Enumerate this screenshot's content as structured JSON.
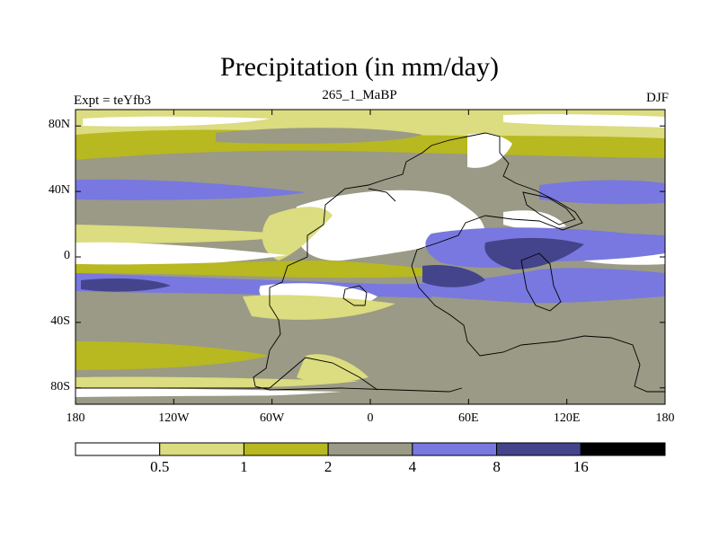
{
  "title": "Precipitation (in mm/day)",
  "left_label": "Expt = teYfb3",
  "center_label": "265_1_MaBP",
  "right_label": "DJF",
  "y_ticks": [
    {
      "label": "80N",
      "lat": 80
    },
    {
      "label": "40N",
      "lat": 40
    },
    {
      "label": "0",
      "lat": 0
    },
    {
      "label": "40S",
      "lat": -40
    },
    {
      "label": "80S",
      "lat": -80
    }
  ],
  "x_ticks": [
    {
      "label": "180",
      "lon": -180
    },
    {
      "label": "120W",
      "lon": -120
    },
    {
      "label": "60W",
      "lon": -60
    },
    {
      "label": "0",
      "lon": 0
    },
    {
      "label": "60E",
      "lon": 60
    },
    {
      "label": "120E",
      "lon": 120
    },
    {
      "label": "180",
      "lon": 180
    }
  ],
  "colorbar": {
    "colors": [
      "#ffffff",
      "#dcdc80",
      "#b8b820",
      "#9a9a86",
      "#7878e0",
      "#44448c",
      "#000000"
    ],
    "labels": [
      "0.5",
      "1",
      "2",
      "4",
      "8",
      "16"
    ]
  },
  "palette": {
    "white": "#ffffff",
    "lightyellow": "#dcdc80",
    "olive": "#b8b820",
    "gray": "#9a9a86",
    "blue": "#7878e0",
    "navy": "#44448c"
  }
}
